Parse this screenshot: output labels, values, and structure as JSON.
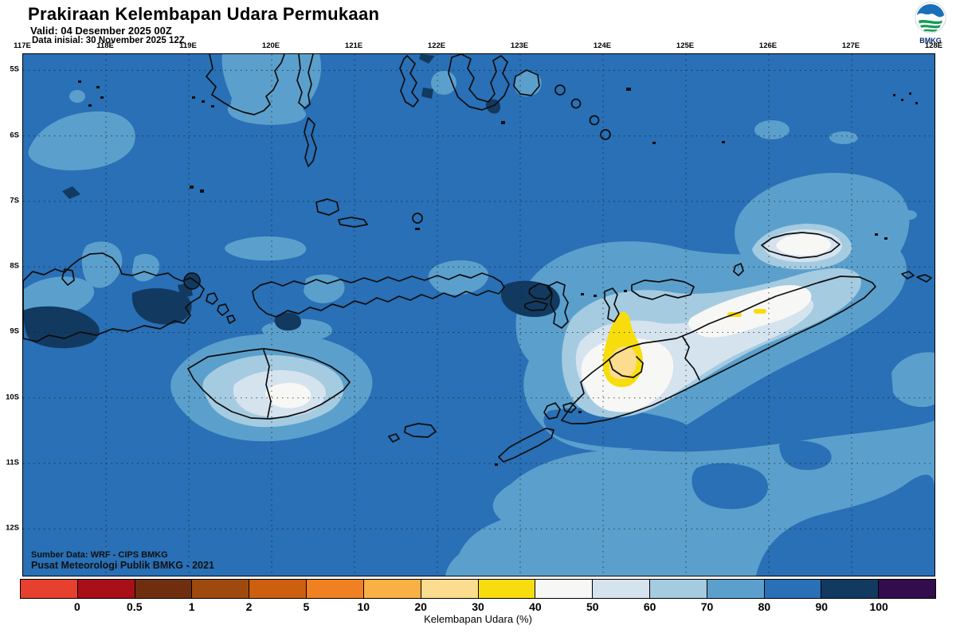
{
  "header": {
    "title": "Prakiraan Kelembapan Udara Permukaan",
    "valid_label": "Valid: 04 Desember 2025 00Z",
    "init_label": "Data inisial: 30 November 2025 12Z",
    "logo_text": "BMKG"
  },
  "map": {
    "lon_labels": [
      "117E",
      "118E",
      "119E",
      "120E",
      "121E",
      "122E",
      "123E",
      "124E",
      "125E",
      "126E",
      "127E",
      "128E"
    ],
    "lat_labels": [
      "5S",
      "6S",
      "7S",
      "8S",
      "9S",
      "10S",
      "11S",
      "12S"
    ],
    "source_line1": "Sumber Data: WRF - CIPS BMKG",
    "source_line2": "Pusat Meteorologi Publik BMKG - 2021"
  },
  "colorbar": {
    "caption": "Kelembapan Udara (%)",
    "tick_labels": [
      "0",
      "0.5",
      "1",
      "2",
      "5",
      "10",
      "20",
      "30",
      "40",
      "50",
      "60",
      "70",
      "80",
      "90",
      "100"
    ],
    "cell_colors": [
      "#e6402e",
      "#a90f17",
      "#6f2f0e",
      "#9e4a0f",
      "#cd5f11",
      "#ef8122",
      "#fbb045",
      "#fcdc8e",
      "#f8dd0e",
      "#f7f7f6",
      "#d5e3ef",
      "#a5cbe1",
      "#5ba0cc",
      "#2970b6",
      "#123a61",
      "#320c4d"
    ],
    "bin_edges": [
      "0",
      "0.5",
      "1",
      "2",
      "5",
      "10",
      "20",
      "30",
      "40",
      "50",
      "60",
      "70",
      "80",
      "90",
      "100"
    ]
  }
}
